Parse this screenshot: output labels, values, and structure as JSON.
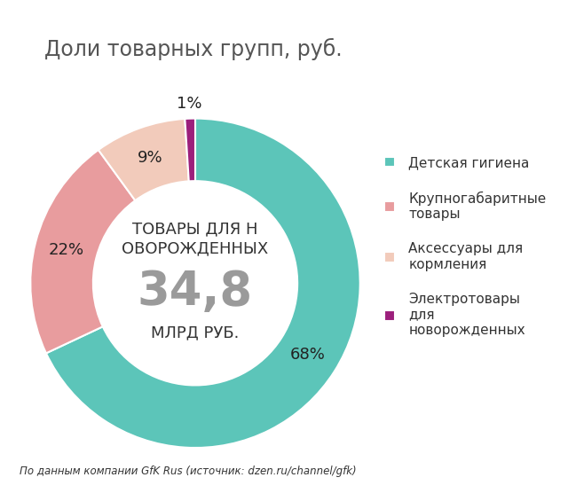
{
  "chart_data": {
    "type": "pie",
    "title": "Доли товарных групп, руб.",
    "categories": [
      "Детская гигиена",
      "Крупногабаритные товары",
      "Аксессуары для кормления",
      "Электротовары для новорожденных"
    ],
    "values": [
      68,
      22,
      9,
      1
    ],
    "value_labels": [
      "68%",
      "22%",
      "9%",
      "1%"
    ],
    "colors": [
      "#5cc5b9",
      "#e89c9e",
      "#f2cbbb",
      "#9c1f7c"
    ],
    "data_labels": true,
    "legend": "right",
    "center_title": "ТОВАРЫ ДЛЯ НОВОРОЖДЕННЫХ",
    "total": {
      "value": 34.8,
      "label": "34,8"
    },
    "total_unit": "МЛРД РУБ.",
    "source": "По данным компании GfK Rus (источник: dzen.ru/channel/gfk)"
  }
}
